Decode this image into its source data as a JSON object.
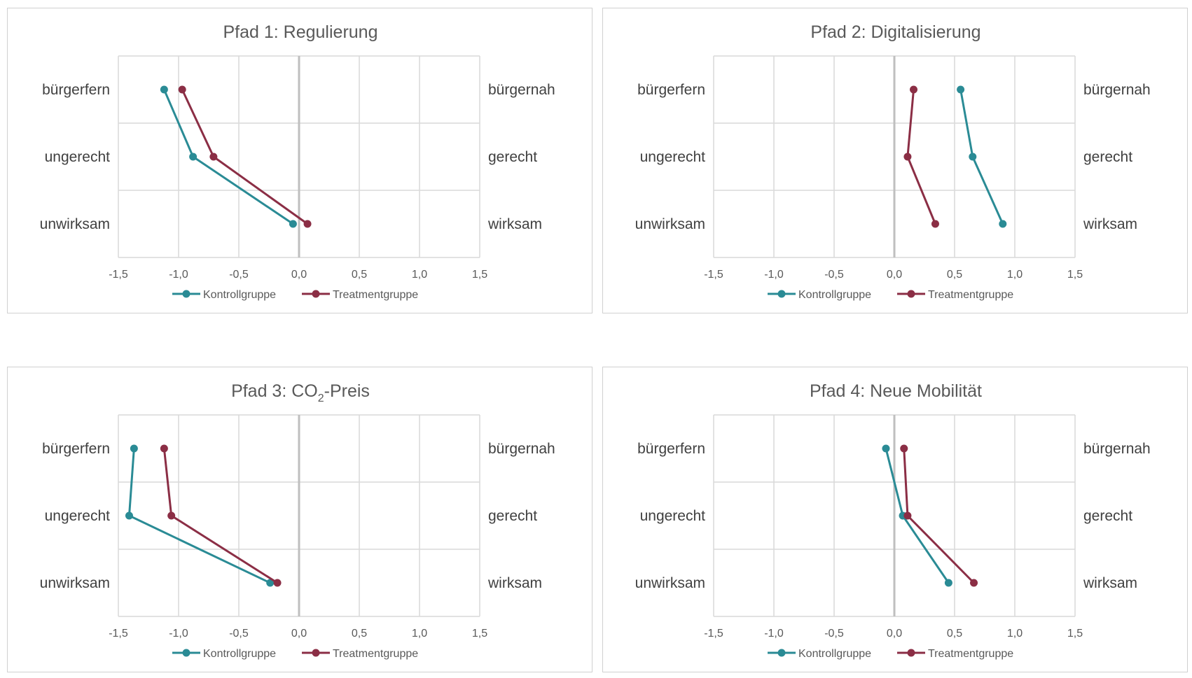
{
  "colors": {
    "kontroll": "#2a8b95",
    "treatment": "#8b2e45",
    "grid": "#d9d9d9",
    "zero": "#bfbfbf"
  },
  "chart_data": [
    {
      "type": "line",
      "title": "Pfad 1: Regulierung",
      "title_main": "Pfad 1: Regulierung",
      "title_sub": "",
      "title_rest": "",
      "left_labels": [
        "bürgerfern",
        "ungerecht",
        "unwirksam"
      ],
      "right_labels": [
        "bürgernah",
        "gerecht",
        "wirksam"
      ],
      "xlim": [
        -1.5,
        1.5
      ],
      "x_ticks": [
        "-1,5",
        "-1,0",
        "-0,5",
        "0,0",
        "0,5",
        "1,0",
        "1,5"
      ],
      "legend_position": "bottom",
      "series": [
        {
          "name": "Kontrollgruppe",
          "color": "#2a8b95",
          "values": [
            -1.12,
            -0.88,
            -0.05
          ]
        },
        {
          "name": "Treatmentgruppe",
          "color": "#8b2e45",
          "values": [
            -0.97,
            -0.71,
            0.07
          ]
        }
      ]
    },
    {
      "type": "line",
      "title": "Pfad 2: Digitalisierung",
      "title_main": "Pfad 2: Digitalisierung",
      "title_sub": "",
      "title_rest": "",
      "left_labels": [
        "bürgerfern",
        "ungerecht",
        "unwirksam"
      ],
      "right_labels": [
        "bürgernah",
        "gerecht",
        "wirksam"
      ],
      "xlim": [
        -1.5,
        1.5
      ],
      "x_ticks": [
        "-1,5",
        "-1,0",
        "-0,5",
        "0,0",
        "0,5",
        "1,0",
        "1,5"
      ],
      "legend_position": "bottom",
      "series": [
        {
          "name": "Kontrollgruppe",
          "color": "#2a8b95",
          "values": [
            0.55,
            0.65,
            0.9
          ]
        },
        {
          "name": "Treatmentgruppe",
          "color": "#8b2e45",
          "values": [
            0.16,
            0.11,
            0.34
          ]
        }
      ]
    },
    {
      "type": "line",
      "title": "Pfad 3: CO2-Preis",
      "title_main": "Pfad 3: CO",
      "title_sub": "2",
      "title_rest": "-Preis",
      "left_labels": [
        "bürgerfern",
        "ungerecht",
        "unwirksam"
      ],
      "right_labels": [
        "bürgernah",
        "gerecht",
        "wirksam"
      ],
      "xlim": [
        -1.5,
        1.5
      ],
      "x_ticks": [
        "-1,5",
        "-1,0",
        "-0,5",
        "0,0",
        "0,5",
        "1,0",
        "1,5"
      ],
      "legend_position": "bottom",
      "series": [
        {
          "name": "Kontrollgruppe",
          "color": "#2a8b95",
          "values": [
            -1.37,
            -1.41,
            -0.24
          ]
        },
        {
          "name": "Treatmentgruppe",
          "color": "#8b2e45",
          "values": [
            -1.12,
            -1.06,
            -0.18
          ]
        }
      ]
    },
    {
      "type": "line",
      "title": "Pfad 4: Neue Mobilität",
      "title_main": "Pfad 4: Neue Mobilität",
      "title_sub": "",
      "title_rest": "",
      "left_labels": [
        "bürgerfern",
        "ungerecht",
        "unwirksam"
      ],
      "right_labels": [
        "bürgernah",
        "gerecht",
        "wirksam"
      ],
      "xlim": [
        -1.5,
        1.5
      ],
      "x_ticks": [
        "-1,5",
        "-1,0",
        "-0,5",
        "0,0",
        "0,5",
        "1,0",
        "1,5"
      ],
      "legend_position": "bottom",
      "series": [
        {
          "name": "Kontrollgruppe",
          "color": "#2a8b95",
          "values": [
            -0.07,
            0.07,
            0.45
          ]
        },
        {
          "name": "Treatmentgruppe",
          "color": "#8b2e45",
          "values": [
            0.08,
            0.11,
            0.66
          ]
        }
      ]
    }
  ]
}
